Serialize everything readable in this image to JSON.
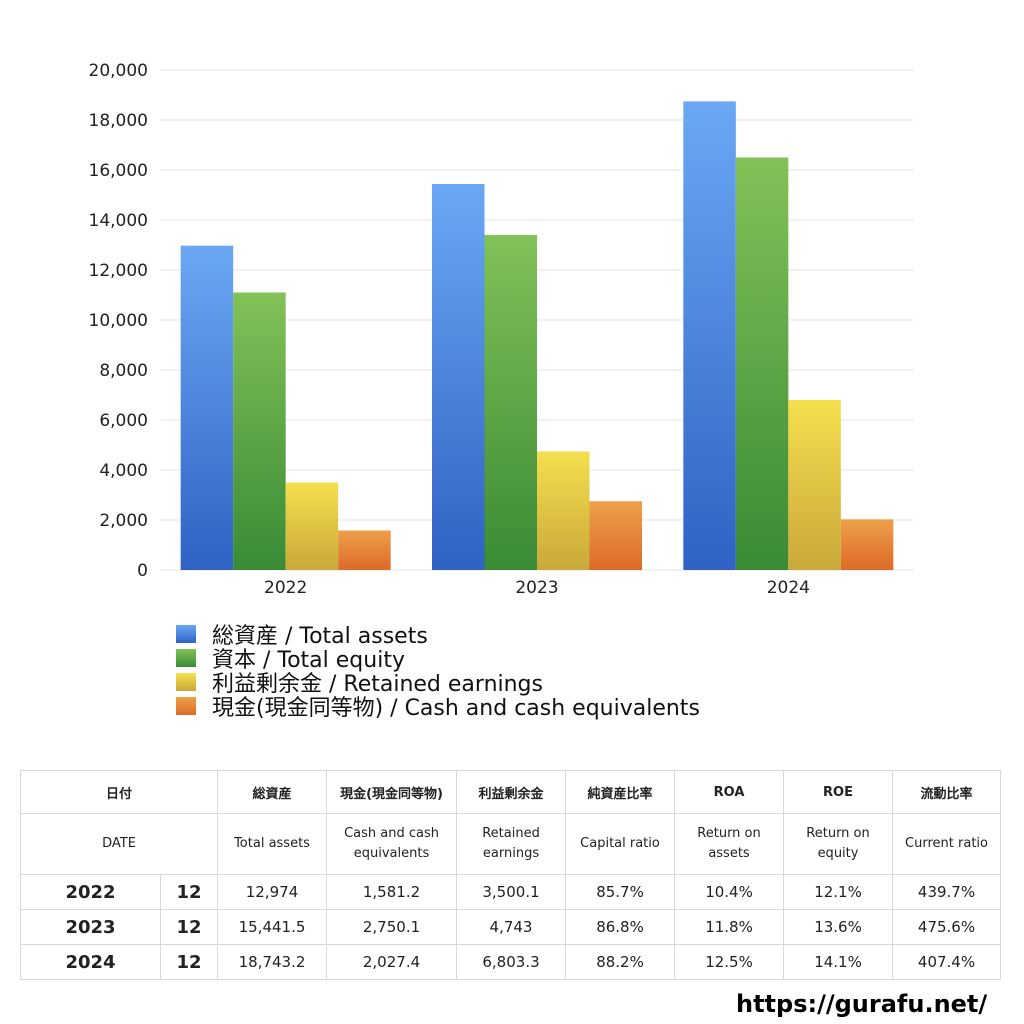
{
  "chart_data": {
    "type": "bar",
    "categories": [
      "2022",
      "2023",
      "2024"
    ],
    "series": [
      {
        "name": "総資産 / Total assets",
        "values": [
          12974,
          15441.5,
          18743.2
        ],
        "color": "#4a86e0"
      },
      {
        "name": "資本 / Total equity",
        "values": [
          11100,
          13400,
          16500
        ],
        "color": "#5aaa48"
      },
      {
        "name": "利益剰余金 / Retained earnings",
        "values": [
          3500.1,
          4743,
          6803.3
        ],
        "color": "#e8c83c"
      },
      {
        "name": "現金(現金同等物) / Cash and cash equivalents",
        "values": [
          1581.2,
          2750.1,
          2027.4
        ],
        "color": "#e57e32"
      }
    ],
    "ylim": [
      0,
      20000
    ],
    "yticks": [
      "0",
      "2,000",
      "4,000",
      "6,000",
      "8,000",
      "10,000",
      "12,000",
      "14,000",
      "16,000",
      "18,000",
      "20,000"
    ],
    "grid": true,
    "legend": "bottom-left"
  },
  "table": {
    "header_jp": [
      "日付",
      "総資産",
      "現金(現金同等物)",
      "利益剰余金",
      "純資産比率",
      "ROA",
      "ROE",
      "流動比率"
    ],
    "header_en": [
      "DATE",
      "Total assets",
      "Cash and cash equivalents",
      "Retained earnings",
      "Capital ratio",
      "Return on assets",
      "Return on equity",
      "Current ratio"
    ],
    "rows": [
      {
        "year": "2022",
        "month": "12",
        "cells": [
          "12,974",
          "1,581.2",
          "3,500.1",
          "85.7%",
          "10.4%",
          "12.1%",
          "439.7%"
        ]
      },
      {
        "year": "2023",
        "month": "12",
        "cells": [
          "15,441.5",
          "2,750.1",
          "4,743",
          "86.8%",
          "11.8%",
          "13.6%",
          "475.6%"
        ]
      },
      {
        "year": "2024",
        "month": "12",
        "cells": [
          "18,743.2",
          "2,027.4",
          "6,803.3",
          "88.2%",
          "12.5%",
          "14.1%",
          "407.4%"
        ]
      }
    ]
  },
  "footer": {
    "url": "https://gurafu.net/"
  }
}
